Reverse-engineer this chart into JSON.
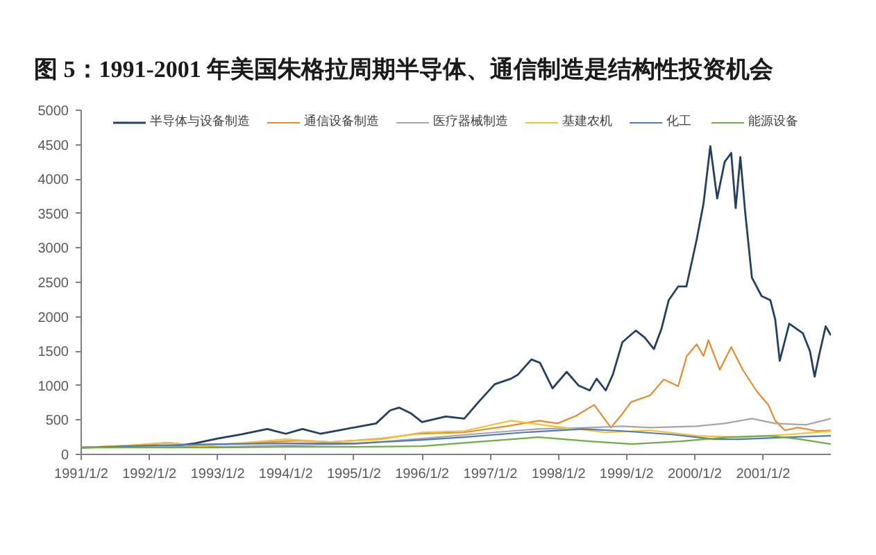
{
  "chart_data": {
    "type": "line",
    "title": "图 5：1991-2001 年美国朱格拉周期半导体、通信制造是结构性投资机会",
    "xlim": [
      "1991-01-02",
      "2001-12-31"
    ],
    "xticks": [
      {
        "value": "1991-01-02",
        "label": "1991/1/2"
      },
      {
        "value": "1992-01-02",
        "label": "1992/1/2"
      },
      {
        "value": "1993-01-02",
        "label": "1993/1/2"
      },
      {
        "value": "1994-01-02",
        "label": "1994/1/2"
      },
      {
        "value": "1995-01-02",
        "label": "1995/1/2"
      },
      {
        "value": "1996-01-02",
        "label": "1996/1/2"
      },
      {
        "value": "1997-01-02",
        "label": "1997/1/2"
      },
      {
        "value": "1998-01-02",
        "label": "1998/1/2"
      },
      {
        "value": "1999-01-02",
        "label": "1999/1/2"
      },
      {
        "value": "2000-01-02",
        "label": "2000/1/2"
      },
      {
        "value": "2001-01-02",
        "label": "2001/1/2"
      }
    ],
    "ylim": [
      0,
      5000
    ],
    "yticks": [
      0,
      500,
      1000,
      1500,
      2000,
      2500,
      3000,
      3500,
      4000,
      4500,
      5000
    ],
    "grid": false,
    "legend": "top",
    "marker": "none",
    "line_style": "solid",
    "series": [
      {
        "name": "半导体与设备制造",
        "color": "#243f60",
        "x": [
          "1991-01-02",
          "1991-07-01",
          "1992-01-02",
          "1992-06-01",
          "1992-09-01",
          "1993-01-02",
          "1993-05-08",
          "1993-09-25",
          "1994-01-02",
          "1994-04-01",
          "1994-07-08",
          "1994-10-12",
          "1995-01-20",
          "1995-05-01",
          "1995-07-15",
          "1995-09-01",
          "1995-11-01",
          "1996-01-02",
          "1996-05-08",
          "1996-08-15",
          "1996-10-30",
          "1997-01-25",
          "1997-04-22",
          "1997-05-30",
          "1997-08-10",
          "1997-09-25",
          "1997-12-01",
          "1998-02-15",
          "1998-04-20",
          "1998-06-18",
          "1998-07-25",
          "1998-09-12",
          "1998-10-20",
          "1998-12-10",
          "1999-02-20",
          "1999-04-08",
          "1999-05-28",
          "1999-07-08",
          "1999-08-15",
          "1999-10-05",
          "1999-11-18",
          "2000-01-12",
          "2000-02-18",
          "2000-03-25",
          "2000-05-01",
          "2000-06-10",
          "2000-07-15",
          "2000-08-08",
          "2000-09-02",
          "2000-09-28",
          "2000-11-03",
          "2000-12-25",
          "2001-02-10",
          "2001-03-08",
          "2001-04-01",
          "2001-05-22",
          "2001-08-03",
          "2001-09-10",
          "2001-10-05",
          "2001-10-28",
          "2001-12-03",
          "2001-12-31"
        ],
        "values": [
          100,
          110,
          120,
          130,
          160,
          230,
          290,
          370,
          300,
          370,
          300,
          350,
          400,
          450,
          640,
          680,
          600,
          470,
          550,
          520,
          760,
          1020,
          1100,
          1160,
          1380,
          1330,
          960,
          1200,
          1000,
          930,
          1100,
          930,
          1160,
          1630,
          1800,
          1700,
          1530,
          1830,
          2240,
          2440,
          2440,
          3120,
          3650,
          4480,
          3720,
          4250,
          4380,
          3580,
          4320,
          3520,
          2570,
          2300,
          2240,
          1960,
          1360,
          1900,
          1760,
          1500,
          1130,
          1430,
          1860,
          1730
        ]
      },
      {
        "name": "通信设备制造",
        "color": "#e8892c",
        "x": [
          "1991-01-02",
          "1991-10-01",
          "1992-04-15",
          "1992-09-01",
          "1993-06-01",
          "1994-03-01",
          "1994-09-01",
          "1995-06-01",
          "1995-12-10",
          "1996-08-15",
          "1997-04-22",
          "1997-09-20",
          "1997-12-28",
          "1998-04-05",
          "1998-07-12",
          "1998-10-10",
          "1998-12-10",
          "1999-01-25",
          "1999-05-08",
          "1999-07-20",
          "1999-10-05",
          "1999-11-20",
          "2000-01-12",
          "2000-02-18",
          "2000-03-15",
          "2000-05-15",
          "2000-07-15",
          "2000-09-15",
          "2000-11-28",
          "2001-01-30",
          "2001-03-08",
          "2001-04-28",
          "2001-07-08",
          "2001-10-20",
          "2001-12-31"
        ],
        "values": [
          100,
          130,
          170,
          130,
          160,
          200,
          180,
          230,
          300,
          320,
          420,
          490,
          450,
          560,
          720,
          390,
          590,
          760,
          860,
          1090,
          990,
          1430,
          1600,
          1430,
          1660,
          1230,
          1560,
          1230,
          920,
          720,
          490,
          350,
          390,
          340,
          350
        ]
      },
      {
        "name": "医疗器械制造",
        "color": "#a6a6a6",
        "x": [
          "1991-01-02",
          "1992-01-02",
          "1993-01-02",
          "1994-01-02",
          "1995-01-02",
          "1996-01-02",
          "1997-01-25",
          "1997-09-15",
          "1998-06-18",
          "1998-12-10",
          "1999-05-08",
          "2000-01-12",
          "2000-06-10",
          "2000-11-03",
          "2001-03-08",
          "2001-08-20",
          "2001-12-31"
        ],
        "values": [
          100,
          120,
          110,
          130,
          150,
          230,
          320,
          370,
          390,
          410,
          390,
          410,
          450,
          520,
          450,
          430,
          520
        ]
      },
      {
        "name": "基建农机",
        "color": "#f2c230",
        "x": [
          "1991-01-02",
          "1991-09-01",
          "1992-04-15",
          "1992-10-01",
          "1993-06-01",
          "1994-01-02",
          "1994-09-01",
          "1995-06-01",
          "1996-01-02",
          "1996-08-15",
          "1997-04-22",
          "1997-12-01",
          "1998-09-12",
          "1999-05-08",
          "2000-01-12",
          "2000-09-02",
          "2001-05-22",
          "2001-12-31"
        ],
        "values": [
          100,
          130,
          170,
          120,
          170,
          220,
          180,
          220,
          320,
          340,
          490,
          410,
          320,
          350,
          270,
          250,
          290,
          340
        ]
      },
      {
        "name": "化工",
        "color": "#4f7ac0",
        "x": [
          "1991-01-02",
          "1992-01-02",
          "1993-01-02",
          "1994-01-02",
          "1995-01-02",
          "1996-01-02",
          "1996-08-15",
          "1997-07-01",
          "1998-05-15",
          "1998-12-10",
          "1999-09-01",
          "2000-04-15",
          "2000-09-02",
          "2001-05-22",
          "2001-12-31"
        ],
        "values": [
          100,
          130,
          150,
          160,
          160,
          210,
          250,
          320,
          370,
          340,
          290,
          220,
          220,
          250,
          270
        ]
      },
      {
        "name": "能源设备",
        "color": "#70ad47",
        "x": [
          "1991-01-02",
          "1992-01-02",
          "1993-01-02",
          "1994-01-02",
          "1995-01-02",
          "1996-01-02",
          "1996-12-01",
          "1997-09-15",
          "1998-06-18",
          "1999-02-01",
          "1999-10-15",
          "2000-07-01",
          "2001-02-10",
          "2001-07-20",
          "2001-12-31"
        ],
        "values": [
          100,
          100,
          100,
          110,
          110,
          120,
          190,
          250,
          190,
          150,
          190,
          250,
          270,
          220,
          150
        ]
      }
    ]
  }
}
